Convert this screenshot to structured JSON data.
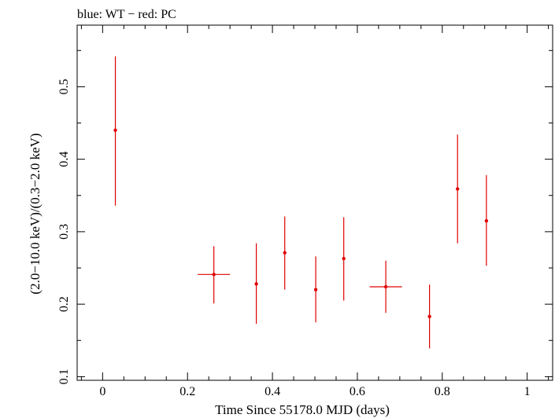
{
  "header": {
    "title": "blue: WT − red: PC"
  },
  "colors": {
    "pc": "#e00000",
    "axis": "#000000"
  },
  "chart_data": {
    "type": "scatter",
    "title": "blue: WT − red: PC",
    "xlabel": "Time Since 55178.0 MJD (days)",
    "ylabel": "(2.0−10.0 keV)/(0.3−2.0 keV)",
    "xlim": [
      -0.06,
      1.06
    ],
    "ylim": [
      0.095,
      0.585
    ],
    "x_ticks": [
      0,
      0.2,
      0.4,
      0.6,
      0.8,
      1
    ],
    "x_tick_labels": [
      "0",
      "0.2",
      "0.4",
      "0.6",
      "0.8",
      "1"
    ],
    "y_ticks": [
      0.1,
      0.2,
      0.3,
      0.4,
      0.5
    ],
    "y_tick_labels": [
      "0.1",
      "0.2",
      "0.3",
      "0.4",
      "0.5"
    ],
    "grid": false,
    "series": [
      {
        "name": "PC",
        "color": "#e00000",
        "points": [
          {
            "x": 0.03,
            "y": 0.44,
            "xerr": 0.0,
            "yerr_lo": 0.104,
            "yerr_hi": 0.102
          },
          {
            "x": 0.262,
            "y": 0.241,
            "xerr": 0.038,
            "yerr_lo": 0.04,
            "yerr_hi": 0.039
          },
          {
            "x": 0.362,
            "y": 0.228,
            "xerr": 0.0,
            "yerr_lo": 0.055,
            "yerr_hi": 0.056
          },
          {
            "x": 0.429,
            "y": 0.271,
            "xerr": 0.0,
            "yerr_lo": 0.051,
            "yerr_hi": 0.05
          },
          {
            "x": 0.502,
            "y": 0.22,
            "xerr": 0.0,
            "yerr_lo": 0.045,
            "yerr_hi": 0.046
          },
          {
            "x": 0.568,
            "y": 0.263,
            "xerr": 0.0,
            "yerr_lo": 0.058,
            "yerr_hi": 0.057
          },
          {
            "x": 0.667,
            "y": 0.224,
            "xerr": 0.038,
            "yerr_lo": 0.036,
            "yerr_hi": 0.036
          },
          {
            "x": 0.77,
            "y": 0.183,
            "xerr": 0.0,
            "yerr_lo": 0.044,
            "yerr_hi": 0.044
          },
          {
            "x": 0.836,
            "y": 0.359,
            "xerr": 0.0,
            "yerr_lo": 0.075,
            "yerr_hi": 0.075
          },
          {
            "x": 0.904,
            "y": 0.315,
            "xerr": 0.0,
            "yerr_lo": 0.062,
            "yerr_hi": 0.063
          }
        ]
      }
    ]
  }
}
